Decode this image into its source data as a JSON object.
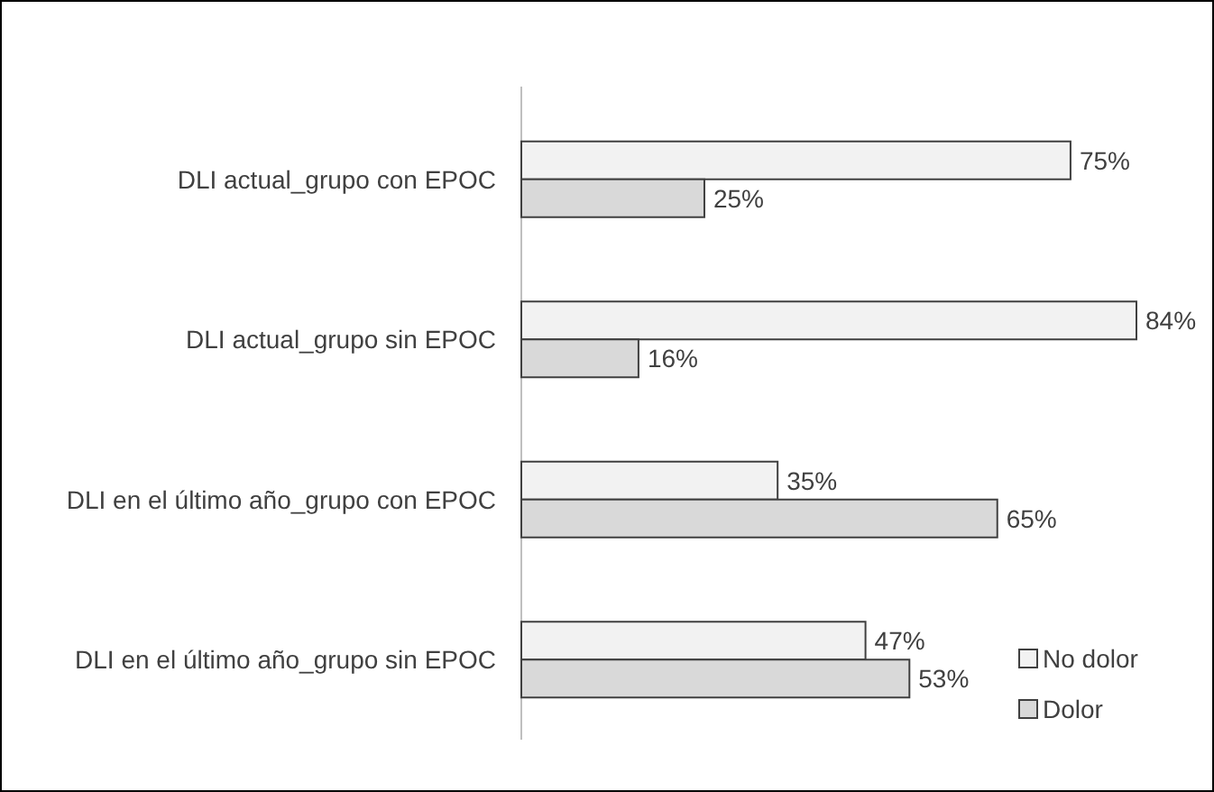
{
  "chart_data": {
    "type": "bar",
    "orientation": "horizontal",
    "categories": [
      "DLI actual_grupo con  EPOC",
      "DLI actual_grupo sin EPOC",
      "DLI en el último año_grupo con EPOC",
      "DLI en el último año_grupo sin EPOC"
    ],
    "series": [
      {
        "name": "No dolor",
        "color": "#f2f2f2",
        "values": [
          75,
          84,
          35,
          47
        ],
        "value_labels": [
          "75%",
          "84%",
          "35%",
          "47%"
        ]
      },
      {
        "name": "Dolor",
        "color": "#d9d9d9",
        "values": [
          25,
          16,
          65,
          53
        ],
        "value_labels": [
          "25%",
          "16%",
          "65%",
          "53%"
        ]
      }
    ],
    "legend": "bottom right"
  }
}
